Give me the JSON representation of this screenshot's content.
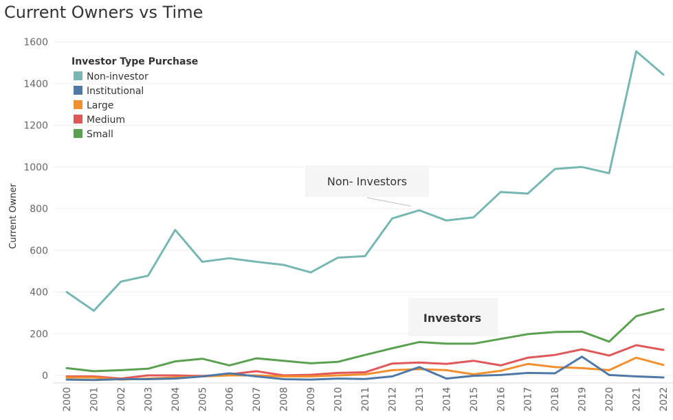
{
  "chart_data": {
    "type": "line",
    "title": "Current Owners vs Time",
    "ylabel": "Current Owner",
    "xlabel": "",
    "ylim": [
      -30,
      1640
    ],
    "yticks": [
      0,
      200,
      400,
      600,
      800,
      1000,
      1200,
      1400,
      1600
    ],
    "grid": true,
    "legend": {
      "title": "Investor Type Purchase",
      "position": "top-left"
    },
    "x": [
      "2000",
      "2001",
      "2002",
      "2003",
      "2004",
      "2005",
      "2006",
      "2007",
      "2008",
      "2009",
      "2010",
      "2011",
      "2012",
      "2013",
      "2014",
      "2015",
      "2016",
      "2017",
      "2018",
      "2019",
      "2020",
      "2021",
      "2022"
    ],
    "series": [
      {
        "name": "Non-investor",
        "color": "#76b7b2",
        "values": [
          400,
          310,
          450,
          478,
          698,
          545,
          562,
          545,
          530,
          494,
          565,
          572,
          753,
          792,
          743,
          758,
          880,
          872,
          990,
          1000,
          970,
          1555,
          1443
        ]
      },
      {
        "name": "Institutional",
        "color": "#4e79a7",
        "values": [
          -20,
          -22,
          -18,
          -18,
          -15,
          -5,
          10,
          -5,
          -18,
          -20,
          -15,
          -17,
          -5,
          40,
          -15,
          -2,
          2,
          12,
          10,
          90,
          2,
          -5,
          -10
        ]
      },
      {
        "name": "Large",
        "color": "#f28e2b",
        "values": [
          -10,
          -10,
          -20,
          -15,
          -10,
          -5,
          0,
          0,
          -5,
          -5,
          0,
          5,
          25,
          30,
          25,
          5,
          22,
          55,
          40,
          35,
          25,
          85,
          50
        ]
      },
      {
        "name": "Medium",
        "color": "#e15759",
        "values": [
          -5,
          -5,
          -15,
          0,
          0,
          -3,
          5,
          20,
          0,
          3,
          12,
          15,
          57,
          62,
          55,
          70,
          48,
          85,
          98,
          125,
          95,
          145,
          122
        ]
      },
      {
        "name": "Small",
        "color": "#59a14f",
        "values": [
          35,
          20,
          25,
          32,
          67,
          80,
          48,
          82,
          70,
          58,
          65,
          98,
          130,
          160,
          152,
          152,
          175,
          198,
          208,
          210,
          162,
          284,
          318
        ]
      }
    ],
    "annotations": [
      {
        "text": "Non- Investors",
        "points_to": {
          "x": "2013",
          "y": 792
        }
      },
      {
        "text": "Investors"
      }
    ]
  }
}
